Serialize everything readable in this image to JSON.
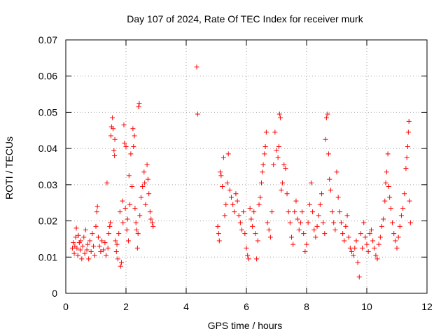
{
  "chart_data": {
    "type": "scatter",
    "title": "Day 107 of 2024, Rate Of TEC Index for receiver murk",
    "xlabel": "GPS time / hours",
    "ylabel": "ROTI / TECUs",
    "xlim": [
      0,
      12
    ],
    "ylim": [
      0,
      0.07
    ],
    "xticks": [
      0,
      2,
      4,
      6,
      8,
      10,
      12
    ],
    "xtick_labels": [
      "0",
      "2",
      "4",
      "6",
      "8",
      "10",
      "12"
    ],
    "yticks": [
      0,
      0.01,
      0.02,
      0.03,
      0.04,
      0.05,
      0.06,
      0.07
    ],
    "ytick_labels": [
      "0",
      "0.01",
      "0.02",
      "0.03",
      "0.04",
      "0.05",
      "0.06",
      "0.07"
    ],
    "grid": true,
    "marker": "+",
    "marker_color": "#ff0000",
    "series": [
      {
        "name": "ROTI",
        "points": [
          [
            0.22,
            0.0125
          ],
          [
            0.25,
            0.014
          ],
          [
            0.28,
            0.011
          ],
          [
            0.3,
            0.013
          ],
          [
            0.33,
            0.0155
          ],
          [
            0.35,
            0.018
          ],
          [
            0.37,
            0.0125
          ],
          [
            0.4,
            0.0105
          ],
          [
            0.42,
            0.016
          ],
          [
            0.45,
            0.014
          ],
          [
            0.48,
            0.012
          ],
          [
            0.5,
            0.0145
          ],
          [
            0.53,
            0.0095
          ],
          [
            0.56,
            0.013
          ],
          [
            0.6,
            0.0155
          ],
          [
            0.63,
            0.011
          ],
          [
            0.66,
            0.0175
          ],
          [
            0.7,
            0.012
          ],
          [
            0.73,
            0.0135
          ],
          [
            0.76,
            0.0095
          ],
          [
            0.8,
            0.0145
          ],
          [
            0.84,
            0.0115
          ],
          [
            0.88,
            0.0165
          ],
          [
            0.92,
            0.013
          ],
          [
            0.96,
            0.0105
          ],
          [
            1.0,
            0.0185
          ],
          [
            1.03,
            0.0225
          ],
          [
            1.05,
            0.024
          ],
          [
            1.08,
            0.0155
          ],
          [
            1.12,
            0.013
          ],
          [
            1.16,
            0.0115
          ],
          [
            1.2,
            0.0145
          ],
          [
            1.25,
            0.012
          ],
          [
            1.3,
            0.014
          ],
          [
            1.34,
            0.0105
          ],
          [
            1.37,
            0.0305
          ],
          [
            1.4,
            0.0125
          ],
          [
            1.43,
            0.0165
          ],
          [
            1.46,
            0.0185
          ],
          [
            1.48,
            0.0195
          ],
          [
            1.5,
            0.0435
          ],
          [
            1.52,
            0.046
          ],
          [
            1.55,
            0.0485
          ],
          [
            1.57,
            0.0455
          ],
          [
            1.6,
            0.0395
          ],
          [
            1.62,
            0.038
          ],
          [
            1.63,
            0.0425
          ],
          [
            1.65,
            0.0145
          ],
          [
            1.68,
            0.0115
          ],
          [
            1.7,
            0.0135
          ],
          [
            1.73,
            0.0095
          ],
          [
            1.76,
            0.0165
          ],
          [
            1.8,
            0.0225
          ],
          [
            1.82,
            0.0075
          ],
          [
            1.85,
            0.0085
          ],
          [
            1.88,
            0.0255
          ],
          [
            1.9,
            0.0195
          ],
          [
            1.93,
            0.0465
          ],
          [
            1.95,
            0.0415
          ],
          [
            1.98,
            0.0235
          ],
          [
            2.0,
            0.0405
          ],
          [
            2.03,
            0.0175
          ],
          [
            2.05,
            0.0205
          ],
          [
            2.08,
            0.0145
          ],
          [
            2.1,
            0.0325
          ],
          [
            2.13,
            0.0245
          ],
          [
            2.16,
            0.0385
          ],
          [
            2.2,
            0.0295
          ],
          [
            2.23,
            0.0455
          ],
          [
            2.25,
            0.0405
          ],
          [
            2.28,
            0.0435
          ],
          [
            2.3,
            0.0235
          ],
          [
            2.33,
            0.0195
          ],
          [
            2.35,
            0.0175
          ],
          [
            2.38,
            0.0125
          ],
          [
            2.4,
            0.0165
          ],
          [
            2.42,
            0.0515
          ],
          [
            2.44,
            0.0525
          ],
          [
            2.46,
            0.0215
          ],
          [
            2.5,
            0.0265
          ],
          [
            2.55,
            0.0295
          ],
          [
            2.6,
            0.0335
          ],
          [
            2.62,
            0.0305
          ],
          [
            2.65,
            0.0245
          ],
          [
            2.7,
            0.0355
          ],
          [
            2.73,
            0.0315
          ],
          [
            2.76,
            0.0275
          ],
          [
            2.8,
            0.0225
          ],
          [
            2.83,
            0.0205
          ],
          [
            2.87,
            0.0195
          ],
          [
            2.9,
            0.0185
          ],
          [
            4.35,
            0.0625
          ],
          [
            4.38,
            0.0495
          ],
          [
            5.05,
            0.0185
          ],
          [
            5.08,
            0.0165
          ],
          [
            5.1,
            0.0145
          ],
          [
            5.13,
            0.0335
          ],
          [
            5.16,
            0.0325
          ],
          [
            5.2,
            0.0295
          ],
          [
            5.24,
            0.0375
          ],
          [
            5.28,
            0.0215
          ],
          [
            5.32,
            0.0245
          ],
          [
            5.36,
            0.0305
          ],
          [
            5.4,
            0.0385
          ],
          [
            5.45,
            0.0285
          ],
          [
            5.5,
            0.0265
          ],
          [
            5.55,
            0.0245
          ],
          [
            5.6,
            0.0225
          ],
          [
            5.65,
            0.0275
          ],
          [
            5.7,
            0.0255
          ],
          [
            5.75,
            0.0215
          ],
          [
            5.8,
            0.0195
          ],
          [
            5.85,
            0.0175
          ],
          [
            5.9,
            0.0225
          ],
          [
            5.95,
            0.0165
          ],
          [
            6.0,
            0.0125
          ],
          [
            6.04,
            0.0105
          ],
          [
            6.08,
            0.0095
          ],
          [
            6.12,
            0.0235
          ],
          [
            6.16,
            0.0205
          ],
          [
            6.2,
            0.0185
          ],
          [
            6.25,
            0.0225
          ],
          [
            6.3,
            0.0165
          ],
          [
            6.34,
            0.0095
          ],
          [
            6.38,
            0.0145
          ],
          [
            6.42,
            0.0245
          ],
          [
            6.46,
            0.0265
          ],
          [
            6.5,
            0.0305
          ],
          [
            6.53,
            0.0335
          ],
          [
            6.56,
            0.0355
          ],
          [
            6.6,
            0.0385
          ],
          [
            6.63,
            0.0405
          ],
          [
            6.66,
            0.0445
          ],
          [
            6.7,
            0.0195
          ],
          [
            6.75,
            0.0175
          ],
          [
            6.8,
            0.0155
          ],
          [
            6.85,
            0.0225
          ],
          [
            6.9,
            0.0355
          ],
          [
            6.95,
            0.0445
          ],
          [
            7.0,
            0.0395
          ],
          [
            7.05,
            0.0375
          ],
          [
            7.08,
            0.0405
          ],
          [
            7.1,
            0.0495
          ],
          [
            7.13,
            0.0485
          ],
          [
            7.16,
            0.0285
          ],
          [
            7.2,
            0.0305
          ],
          [
            7.25,
            0.0355
          ],
          [
            7.3,
            0.0345
          ],
          [
            7.35,
            0.0275
          ],
          [
            7.4,
            0.0225
          ],
          [
            7.45,
            0.0195
          ],
          [
            7.5,
            0.0155
          ],
          [
            7.55,
            0.0135
          ],
          [
            7.6,
            0.0225
          ],
          [
            7.65,
            0.0255
          ],
          [
            7.7,
            0.0205
          ],
          [
            7.75,
            0.0175
          ],
          [
            7.8,
            0.0195
          ],
          [
            7.85,
            0.0225
          ],
          [
            7.9,
            0.0165
          ],
          [
            7.95,
            0.0115
          ],
          [
            8.0,
            0.0135
          ],
          [
            8.05,
            0.0195
          ],
          [
            8.1,
            0.0245
          ],
          [
            8.15,
            0.0305
          ],
          [
            8.2,
            0.0225
          ],
          [
            8.25,
            0.0175
          ],
          [
            8.3,
            0.0155
          ],
          [
            8.35,
            0.0185
          ],
          [
            8.4,
            0.0215
          ],
          [
            8.45,
            0.0245
          ],
          [
            8.5,
            0.0275
          ],
          [
            8.55,
            0.0195
          ],
          [
            8.6,
            0.0165
          ],
          [
            8.63,
            0.0425
          ],
          [
            8.66,
            0.0485
          ],
          [
            8.7,
            0.0495
          ],
          [
            8.73,
            0.0385
          ],
          [
            8.76,
            0.0315
          ],
          [
            8.8,
            0.0285
          ],
          [
            8.85,
            0.0225
          ],
          [
            8.9,
            0.0195
          ],
          [
            8.95,
            0.0175
          ],
          [
            9.0,
            0.0335
          ],
          [
            9.05,
            0.0265
          ],
          [
            9.1,
            0.0225
          ],
          [
            9.15,
            0.0195
          ],
          [
            9.2,
            0.0165
          ],
          [
            9.25,
            0.0145
          ],
          [
            9.3,
            0.0185
          ],
          [
            9.35,
            0.0215
          ],
          [
            9.4,
            0.0155
          ],
          [
            9.45,
            0.0125
          ],
          [
            9.5,
            0.0115
          ],
          [
            9.55,
            0.0105
          ],
          [
            9.6,
            0.0125
          ],
          [
            9.65,
            0.0145
          ],
          [
            9.7,
            0.0085
          ],
          [
            9.75,
            0.0045
          ],
          [
            9.8,
            0.0165
          ],
          [
            9.85,
            0.0125
          ],
          [
            9.9,
            0.0195
          ],
          [
            9.95,
            0.0155
          ],
          [
            10.0,
            0.0135
          ],
          [
            10.05,
            0.0115
          ],
          [
            10.1,
            0.0165
          ],
          [
            10.15,
            0.0175
          ],
          [
            10.2,
            0.0145
          ],
          [
            10.25,
            0.0125
          ],
          [
            10.3,
            0.0105
          ],
          [
            10.35,
            0.0095
          ],
          [
            10.4,
            0.0135
          ],
          [
            10.45,
            0.0155
          ],
          [
            10.5,
            0.0185
          ],
          [
            10.55,
            0.0205
          ],
          [
            10.6,
            0.0255
          ],
          [
            10.63,
            0.0305
          ],
          [
            10.66,
            0.0335
          ],
          [
            10.7,
            0.0385
          ],
          [
            10.73,
            0.0295
          ],
          [
            10.76,
            0.0265
          ],
          [
            10.8,
            0.0235
          ],
          [
            10.85,
            0.0195
          ],
          [
            10.9,
            0.0165
          ],
          [
            10.95,
            0.0145
          ],
          [
            11.0,
            0.0125
          ],
          [
            11.05,
            0.0155
          ],
          [
            11.1,
            0.0185
          ],
          [
            11.15,
            0.0215
          ],
          [
            11.2,
            0.0235
          ],
          [
            11.25,
            0.0275
          ],
          [
            11.3,
            0.0345
          ],
          [
            11.33,
            0.0375
          ],
          [
            11.36,
            0.0405
          ],
          [
            11.38,
            0.0445
          ],
          [
            11.4,
            0.0475
          ],
          [
            11.42,
            0.0255
          ],
          [
            11.45,
            0.0195
          ]
        ]
      }
    ]
  }
}
